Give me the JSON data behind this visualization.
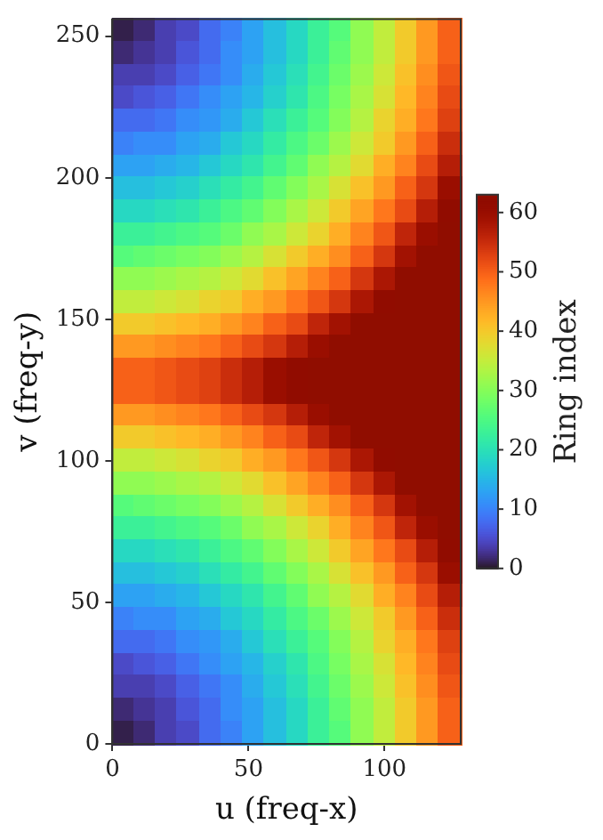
{
  "chart_data": {
    "type": "heatmap",
    "xlabel": "u (freq-x)",
    "ylabel": "v (freq-y)",
    "clabel": "Ring index",
    "x": [
      4,
      12,
      20,
      28,
      36,
      44,
      52,
      60,
      68,
      76,
      84,
      92,
      100,
      108,
      116,
      124
    ],
    "y": [
      252,
      244,
      236,
      228,
      220,
      212,
      204,
      196,
      188,
      180,
      172,
      164,
      156,
      148,
      140,
      132,
      124,
      116,
      108,
      100,
      92,
      84,
      76,
      68,
      60,
      52,
      44,
      36,
      28,
      20,
      12,
      4
    ],
    "xlim": [
      0,
      128
    ],
    "ylim": [
      0,
      256
    ],
    "xticks": [
      0,
      50,
      100
    ],
    "yticks": [
      0,
      50,
      100,
      150,
      200,
      250
    ],
    "clim": [
      0,
      63
    ],
    "cticks": [
      0,
      10,
      20,
      30,
      40,
      50,
      60
    ],
    "cells": [
      [
        1,
        2,
        4,
        5,
        8,
        10,
        13,
        16,
        19,
        23,
        26,
        31,
        35,
        40,
        45,
        50
      ],
      [
        2,
        3,
        4,
        6,
        8,
        11,
        13,
        16,
        19,
        23,
        27,
        31,
        35,
        40,
        45,
        50
      ],
      [
        4,
        4,
        5,
        7,
        9,
        11,
        14,
        17,
        20,
        24,
        28,
        32,
        36,
        41,
        46,
        51
      ],
      [
        5,
        6,
        7,
        9,
        11,
        13,
        15,
        18,
        21,
        25,
        29,
        33,
        37,
        42,
        47,
        52
      ],
      [
        8,
        8,
        9,
        11,
        12,
        14,
        17,
        20,
        23,
        26,
        30,
        34,
        39,
        43,
        48,
        53
      ],
      [
        10,
        11,
        11,
        13,
        14,
        17,
        19,
        22,
        25,
        28,
        32,
        36,
        40,
        45,
        50,
        55
      ],
      [
        13,
        13,
        14,
        15,
        17,
        19,
        21,
        24,
        27,
        31,
        34,
        38,
        43,
        47,
        52,
        57
      ],
      [
        16,
        16,
        17,
        18,
        20,
        22,
        24,
        27,
        30,
        33,
        37,
        41,
        45,
        50,
        54,
        60
      ],
      [
        19,
        19,
        20,
        21,
        23,
        25,
        27,
        30,
        33,
        36,
        40,
        44,
        48,
        52,
        57,
        62
      ],
      [
        23,
        23,
        24,
        25,
        26,
        28,
        31,
        33,
        36,
        39,
        43,
        47,
        51,
        56,
        60,
        63
      ],
      [
        26,
        27,
        28,
        29,
        30,
        32,
        34,
        37,
        40,
        43,
        46,
        50,
        54,
        59,
        63,
        63
      ],
      [
        31,
        31,
        32,
        33,
        34,
        36,
        38,
        41,
        44,
        47,
        50,
        54,
        58,
        63,
        63,
        63
      ],
      [
        35,
        35,
        36,
        37,
        39,
        40,
        43,
        45,
        48,
        51,
        54,
        58,
        62,
        63,
        63,
        63
      ],
      [
        40,
        40,
        41,
        42,
        43,
        45,
        47,
        50,
        52,
        56,
        59,
        63,
        63,
        63,
        63,
        63
      ],
      [
        45,
        45,
        46,
        47,
        48,
        50,
        52,
        54,
        57,
        60,
        63,
        63,
        63,
        63,
        63,
        63
      ],
      [
        50,
        50,
        51,
        52,
        53,
        55,
        57,
        60,
        62,
        63,
        63,
        63,
        63,
        63,
        63,
        63
      ],
      [
        50,
        50,
        51,
        52,
        53,
        55,
        57,
        60,
        62,
        63,
        63,
        63,
        63,
        63,
        63,
        63
      ],
      [
        45,
        45,
        46,
        47,
        48,
        50,
        52,
        54,
        57,
        60,
        63,
        63,
        63,
        63,
        63,
        63
      ],
      [
        40,
        40,
        41,
        42,
        43,
        45,
        47,
        50,
        52,
        56,
        59,
        63,
        63,
        63,
        63,
        63
      ],
      [
        35,
        35,
        36,
        37,
        39,
        40,
        43,
        45,
        48,
        51,
        54,
        58,
        62,
        63,
        63,
        63
      ],
      [
        31,
        31,
        32,
        33,
        34,
        36,
        38,
        41,
        44,
        47,
        50,
        54,
        58,
        63,
        63,
        63
      ],
      [
        26,
        27,
        28,
        29,
        30,
        32,
        34,
        37,
        40,
        43,
        46,
        50,
        54,
        59,
        63,
        63
      ],
      [
        23,
        23,
        24,
        25,
        26,
        28,
        31,
        33,
        36,
        39,
        43,
        47,
        51,
        56,
        60,
        63
      ],
      [
        19,
        19,
        20,
        21,
        23,
        25,
        27,
        30,
        33,
        36,
        40,
        44,
        48,
        52,
        57,
        62
      ],
      [
        16,
        16,
        17,
        18,
        20,
        22,
        24,
        27,
        30,
        33,
        37,
        41,
        45,
        50,
        54,
        60
      ],
      [
        13,
        13,
        14,
        15,
        17,
        19,
        21,
        24,
        27,
        31,
        34,
        38,
        43,
        47,
        52,
        57
      ],
      [
        10,
        11,
        11,
        13,
        14,
        17,
        19,
        22,
        25,
        28,
        32,
        36,
        40,
        45,
        50,
        55
      ],
      [
        8,
        8,
        9,
        11,
        12,
        14,
        17,
        20,
        23,
        26,
        30,
        34,
        39,
        43,
        48,
        53
      ],
      [
        5,
        6,
        7,
        9,
        11,
        13,
        15,
        18,
        21,
        25,
        29,
        33,
        37,
        42,
        47,
        52
      ],
      [
        4,
        4,
        5,
        7,
        9,
        11,
        14,
        17,
        20,
        24,
        28,
        32,
        36,
        41,
        46,
        51
      ],
      [
        2,
        3,
        4,
        6,
        8,
        11,
        13,
        16,
        19,
        23,
        27,
        31,
        35,
        40,
        45,
        50
      ],
      [
        1,
        2,
        4,
        5,
        8,
        10,
        13,
        16,
        19,
        23,
        26,
        31,
        35,
        40,
        45,
        50
      ]
    ]
  }
}
